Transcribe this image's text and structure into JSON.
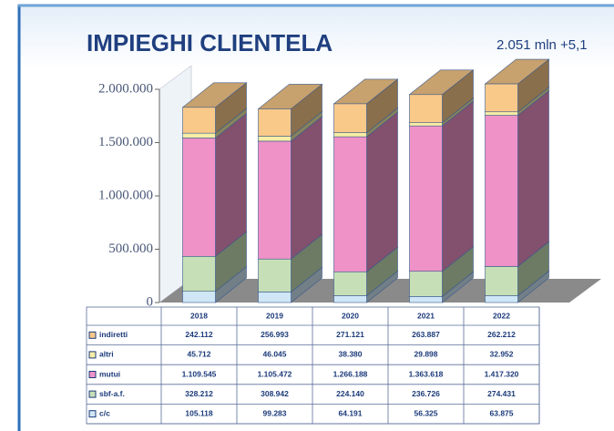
{
  "chart_data": {
    "type": "bar",
    "stacked": true,
    "title": "IMPIEGHI CLIENTELA",
    "subtitle": "2.051 mln +5,1",
    "categories": [
      "2018",
      "2019",
      "2020",
      "2021",
      "2022"
    ],
    "series": [
      {
        "name": "indiretti",
        "color": "#f9c98a",
        "values": [
          242112,
          256993,
          271121,
          263887,
          262212
        ],
        "value_labels": [
          "242.112",
          "256.993",
          "271.121",
          "263.887",
          "262.212"
        ]
      },
      {
        "name": "altri",
        "color": "#f6eea6",
        "values": [
          45712,
          46045,
          38380,
          29898,
          32952
        ],
        "value_labels": [
          "45.712",
          "46.045",
          "38.380",
          "29.898",
          "32.952"
        ]
      },
      {
        "name": "mutui",
        "color": "#ee92c8",
        "values": [
          1109545,
          1105472,
          1266188,
          1363618,
          1417320
        ],
        "value_labels": [
          "1.109.545",
          "1.105.472",
          "1.266.188",
          "1.363.618",
          "1.417.320"
        ]
      },
      {
        "name": "sbf-a.f.",
        "color": "#c6dfb6",
        "values": [
          328212,
          308942,
          224140,
          236726,
          274431
        ],
        "value_labels": [
          "328.212",
          "308.942",
          "224.140",
          "236.726",
          "274.431"
        ]
      },
      {
        "name": "c/c",
        "color": "#cfe6f6",
        "values": [
          105118,
          99283,
          64191,
          56325,
          63875
        ],
        "value_labels": [
          "105.118",
          "99.283",
          "64.191",
          "56.325",
          "63.875"
        ]
      }
    ],
    "ylim": [
      0,
      2000000
    ],
    "yticks": [
      0,
      {
        "value": 500000,
        "label": "500.000"
      },
      {
        "value": 1000000,
        "label": "1.000.000"
      },
      {
        "value": 1500000,
        "label": "1.500.000"
      },
      {
        "value": 2000000,
        "label": "2.000.000"
      }
    ]
  }
}
